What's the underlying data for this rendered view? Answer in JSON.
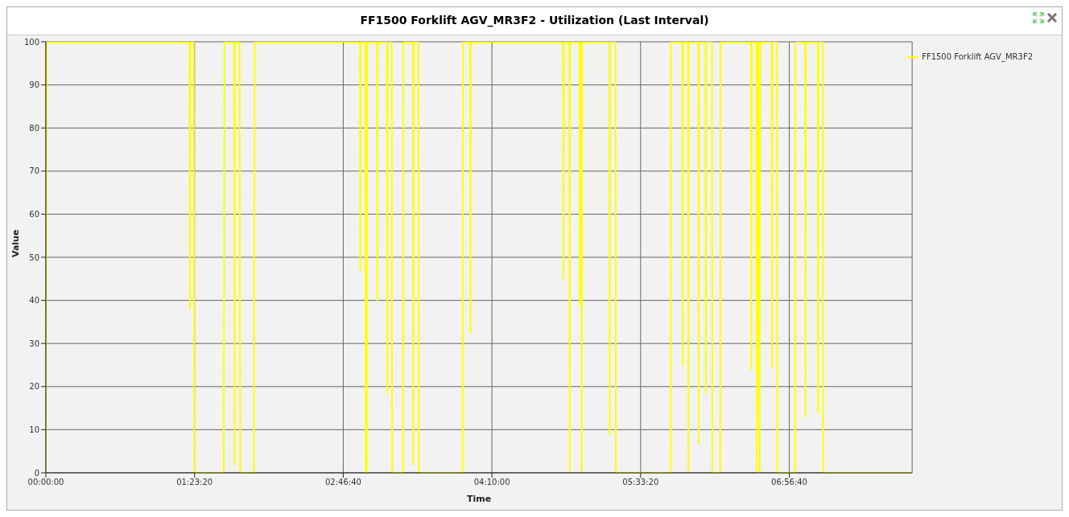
{
  "chart_data": {
    "type": "line",
    "title": "FF1500 Forklift AGV_MR3F2 - Utilization (Last Interval)",
    "xlabel": "Time",
    "ylabel": "Value",
    "xlim": [
      0,
      8.092
    ],
    "xticks": [
      {
        "value": 0,
        "label": "00:00:00"
      },
      {
        "value": 1.38889,
        "label": "01:23:20"
      },
      {
        "value": 2.77778,
        "label": "02:46:40"
      },
      {
        "value": 4.16667,
        "label": "04:10:00"
      },
      {
        "value": 5.55556,
        "label": "05:33:20"
      },
      {
        "value": 6.94444,
        "label": "06:56:40"
      }
    ],
    "ylim": [
      0,
      100
    ],
    "yticks": [
      0,
      10,
      20,
      30,
      40,
      50,
      60,
      70,
      80,
      90,
      100
    ],
    "grid": true,
    "legend": "top right",
    "marker": "none",
    "line_style": "solid",
    "series": [
      {
        "name": "FF1500 Forklift AGV_MR3F2",
        "color": "#ffff00",
        "x": [
          0,
          0.006,
          1.342,
          1.345,
          1.349,
          1.381,
          1.387,
          1.662,
          1.668,
          1.758,
          1.761,
          1.764,
          1.809,
          1.815,
          1.943,
          1.95,
          2.934,
          2.937,
          2.94,
          2.985,
          2.988,
          2.998,
          3.001,
          3.094,
          3.097,
          3.1,
          3.186,
          3.19,
          3.193,
          3.231,
          3.234,
          3.337,
          3.34,
          3.429,
          3.432,
          3.436,
          3.48,
          3.484,
          3.893,
          3.896,
          3.963,
          3.966,
          3.969,
          4.832,
          4.835,
          4.839,
          4.89,
          4.893,
          4.896,
          4.986,
          4.989,
          4.992,
          5.002,
          5.005,
          5.008,
          5.264,
          5.267,
          5.27,
          5.321,
          5.324,
          5.836,
          5.839,
          5.944,
          5.948,
          5.951,
          5.999,
          6.002,
          6.005,
          6.095,
          6.098,
          6.101,
          6.162,
          6.165,
          6.168,
          6.222,
          6.226,
          6.299,
          6.302,
          6.587,
          6.59,
          6.593,
          6.638,
          6.641,
          6.654,
          6.667,
          6.673,
          6.779,
          6.782,
          6.785,
          6.83,
          6.833,
          6.999,
          7.002,
          7.092,
          7.095,
          7.098,
          7.21,
          7.213,
          7.216,
          7.258,
          7.261,
          8.092
        ],
        "values": [
          0,
          100,
          100,
          38,
          100,
          100,
          0,
          0,
          100,
          100,
          2,
          100,
          100,
          0,
          0,
          100,
          100,
          47,
          100,
          100,
          0,
          0,
          100,
          100,
          40,
          100,
          100,
          18.5,
          100,
          100,
          0,
          0,
          100,
          100,
          2,
          100,
          100,
          0,
          0,
          100,
          100,
          32.5,
          100,
          100,
          45,
          100,
          100,
          0,
          100,
          100,
          39,
          100,
          100,
          0,
          100,
          100,
          9,
          100,
          100,
          0,
          0,
          100,
          100,
          25,
          100,
          100,
          0,
          100,
          100,
          7,
          100,
          100,
          18.5,
          100,
          100,
          0,
          0,
          100,
          100,
          24,
          100,
          100,
          0,
          100,
          0,
          100,
          100,
          24.5,
          100,
          100,
          0,
          0,
          100,
          100,
          13,
          100,
          100,
          14,
          100,
          100,
          0,
          0
        ]
      }
    ]
  }
}
